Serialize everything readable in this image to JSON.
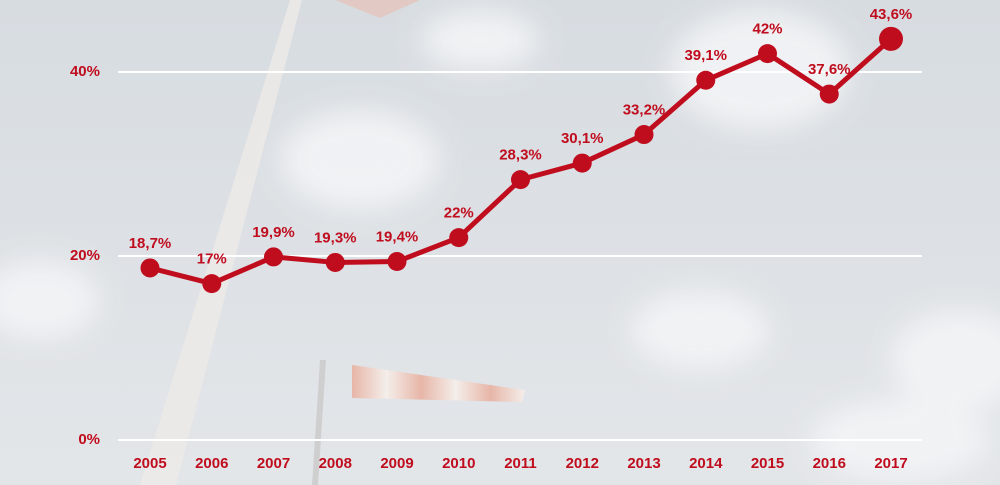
{
  "chart_data": {
    "type": "line",
    "categories": [
      "2005",
      "2006",
      "2007",
      "2008",
      "2009",
      "2010",
      "2011",
      "2012",
      "2013",
      "2014",
      "2015",
      "2016",
      "2017"
    ],
    "series": [
      {
        "color": "#c00d1e",
        "values": [
          18.7,
          17,
          19.9,
          19.3,
          19.4,
          22,
          28.3,
          30.1,
          33.2,
          39.1,
          42,
          37.6,
          43.6
        ],
        "value_labels": [
          "18,7%",
          "17%",
          "19,9%",
          "19,3%",
          "19,4%",
          "22%",
          "28,3%",
          "30,1%",
          "33,2%",
          "39,1%",
          "42%",
          "37,6%",
          "43,6%"
        ]
      }
    ],
    "ylim": [
      0,
      45
    ],
    "yticks": [
      {
        "value": 0,
        "label": "0%"
      },
      {
        "value": 20,
        "label": "20%"
      },
      {
        "value": 40,
        "label": "40%"
      }
    ],
    "grid": true
  }
}
